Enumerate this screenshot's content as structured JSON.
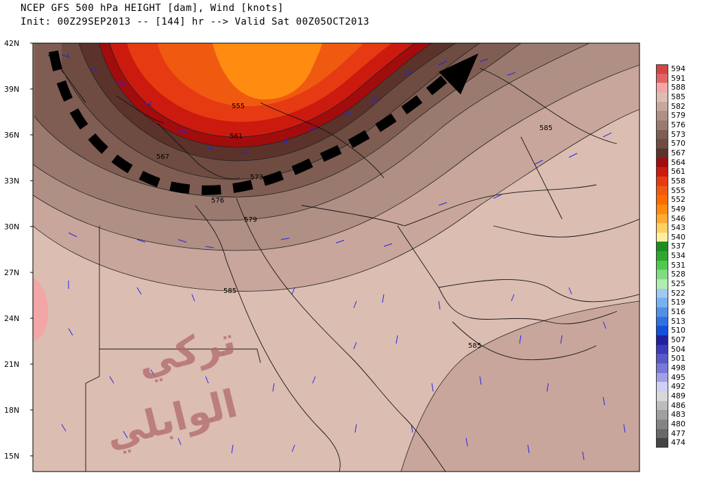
{
  "title": {
    "line1": "NCEP GFS 500 hPa HEIGHT [dam], Wind [knots]",
    "line2": "Init: 00Z29SEP2013 -- [144] hr --> Valid Sat 00Z05OCT2013"
  },
  "map": {
    "lat_labels": [
      "42N",
      "39N",
      "36N",
      "33N",
      "30N",
      "27N",
      "24N",
      "21N",
      "18N",
      "15N"
    ],
    "contour_labels": [
      "555",
      "561",
      "567",
      "573",
      "576",
      "579",
      "585",
      "585",
      "585"
    ],
    "colors": {
      "c555": "#ff8c00",
      "c558": "#f04a10",
      "c561": "#d9260a",
      "c564": "#b30e05",
      "c567": "#6e3a30",
      "c570": "#6e4c42",
      "c573": "#7f5d52",
      "c576": "#9a7a6f",
      "c579": "#b08f84",
      "c582": "#c8a69b",
      "c585": "#d9bbb0",
      "c588": "#f2a6a6",
      "wind": "#2222ee",
      "arrow": "#000000"
    }
  },
  "legend": {
    "items": [
      {
        "label": "594",
        "color": "#d64545"
      },
      {
        "label": "591",
        "color": "#e36464"
      },
      {
        "label": "588",
        "color": "#f2a6a6"
      },
      {
        "label": "585",
        "color": "#dbbdb2"
      },
      {
        "label": "582",
        "color": "#c8a69b"
      },
      {
        "label": "579",
        "color": "#b08f84"
      },
      {
        "label": "576",
        "color": "#9a7a6f"
      },
      {
        "label": "573",
        "color": "#7f5d52"
      },
      {
        "label": "570",
        "color": "#6e4c42"
      },
      {
        "label": "567",
        "color": "#5b332b"
      },
      {
        "label": "564",
        "color": "#a30c0c"
      },
      {
        "label": "561",
        "color": "#cc1a0e"
      },
      {
        "label": "558",
        "color": "#e63b12"
      },
      {
        "label": "555",
        "color": "#f05a10"
      },
      {
        "label": "552",
        "color": "#ff6a00"
      },
      {
        "label": "549",
        "color": "#ff8c10"
      },
      {
        "label": "546",
        "color": "#ffaa33"
      },
      {
        "label": "543",
        "color": "#ffd060"
      },
      {
        "label": "540",
        "color": "#fff0a0"
      },
      {
        "label": "537",
        "color": "#1e8c1e"
      },
      {
        "label": "534",
        "color": "#2ea82e"
      },
      {
        "label": "531",
        "color": "#50c850"
      },
      {
        "label": "528",
        "color": "#80dc80"
      },
      {
        "label": "525",
        "color": "#b0ecb0"
      },
      {
        "label": "522",
        "color": "#a0c8f0"
      },
      {
        "label": "519",
        "color": "#78b0f0"
      },
      {
        "label": "516",
        "color": "#5090e8"
      },
      {
        "label": "513",
        "color": "#3070e0"
      },
      {
        "label": "510",
        "color": "#1450d8"
      },
      {
        "label": "507",
        "color": "#2020a0"
      },
      {
        "label": "504",
        "color": "#3c3cb8"
      },
      {
        "label": "501",
        "color": "#5858c8"
      },
      {
        "label": "498",
        "color": "#7878d8"
      },
      {
        "label": "495",
        "color": "#a0a0e8"
      },
      {
        "label": "492",
        "color": "#d0d0f4"
      },
      {
        "label": "489",
        "color": "#d8d8d8"
      },
      {
        "label": "486",
        "color": "#bcbcbc"
      },
      {
        "label": "483",
        "color": "#a0a0a0"
      },
      {
        "label": "480",
        "color": "#848484"
      },
      {
        "label": "477",
        "color": "#686868"
      },
      {
        "label": "474",
        "color": "#444444"
      }
    ]
  },
  "watermark": {
    "line1": "تركي",
    "line2": "الوابلي",
    "color": "#b06a6a"
  }
}
